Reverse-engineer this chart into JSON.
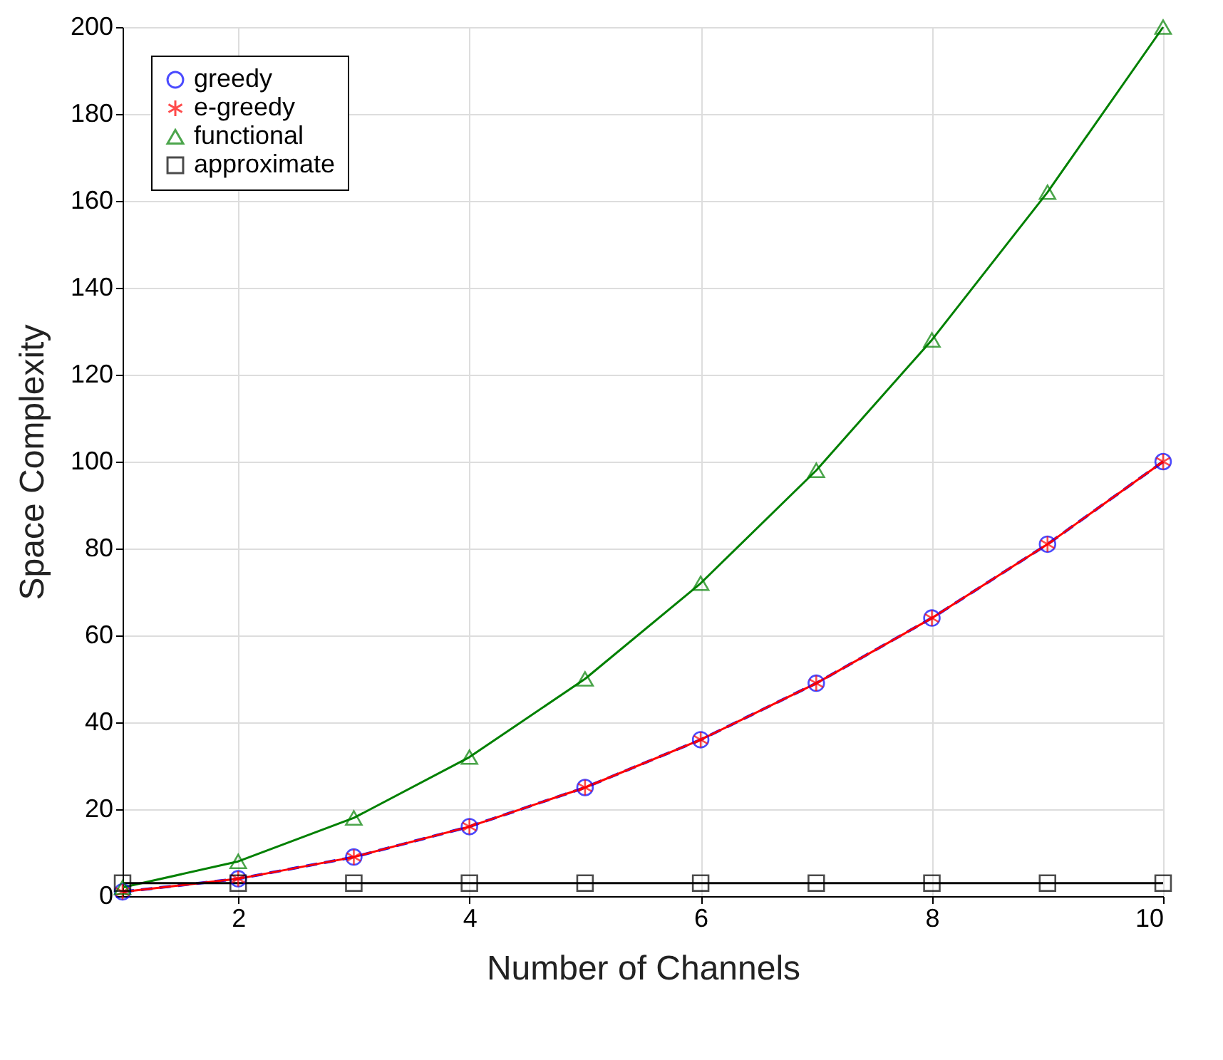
{
  "chart_data": {
    "type": "line",
    "xlabel": "Number of Channels",
    "ylabel": "Space Complexity",
    "x": [
      1,
      2,
      3,
      4,
      5,
      6,
      7,
      8,
      9,
      10
    ],
    "series": [
      {
        "name": "greedy",
        "color": "#0000ff",
        "marker": "circle",
        "line_style": "dashed",
        "values": [
          1,
          4,
          9,
          16,
          25,
          36,
          49,
          64,
          81,
          100
        ]
      },
      {
        "name": "e-greedy",
        "color": "#ff0000",
        "marker": "cross",
        "line_style": "solid",
        "values": [
          1,
          4,
          9,
          16,
          25,
          36,
          49,
          64,
          81,
          100
        ]
      },
      {
        "name": "functional",
        "color": "#008000",
        "marker": "triangle",
        "line_style": "solid",
        "values": [
          2,
          8,
          18,
          32,
          50,
          72,
          98,
          128,
          162,
          200
        ]
      },
      {
        "name": "approximate",
        "color": "#000000",
        "marker": "square",
        "line_style": "solid",
        "values": [
          3,
          3,
          3,
          3,
          3,
          3,
          3,
          3,
          3,
          3
        ]
      }
    ],
    "xlim": [
      1,
      10
    ],
    "xticks": [
      2,
      4,
      6,
      8,
      10
    ],
    "ylim": [
      0,
      200
    ],
    "yticks": [
      0,
      20,
      40,
      60,
      80,
      100,
      120,
      140,
      160,
      180,
      200
    ],
    "grid": true,
    "legend": "top left"
  }
}
